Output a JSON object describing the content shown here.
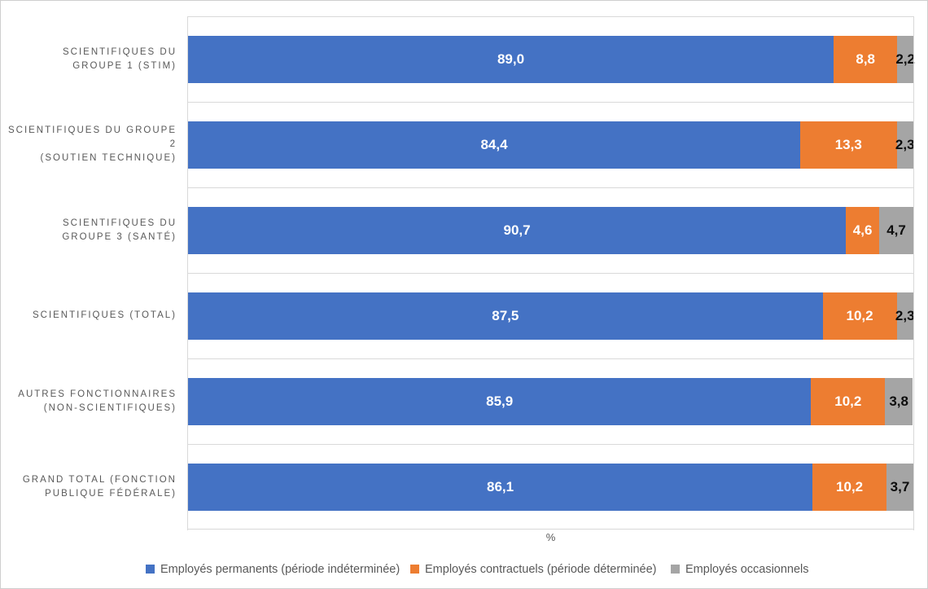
{
  "chart_data": {
    "type": "bar",
    "orientation": "horizontal",
    "stacked": true,
    "title": "",
    "xlabel": "%",
    "xlim": [
      0,
      100
    ],
    "grid": "horizontal band separators only",
    "legend_position": "bottom",
    "categories": [
      "SCIENTIFIQUES DU GROUPE 1 (STIM)",
      "SCIENTIFIQUES DU GROUPE 2 (SOUTIEN TECHNIQUE)",
      "SCIENTIFIQUES DU GROUPE 3 (SANTÉ)",
      "SCIENTIFIQUES (TOTAL)",
      "AUTRES FONCTIONNAIRES (NON-SCIENTIFIQUES)",
      "GRAND TOTAL (FONCTION PUBLIQUE FÉDÉRALE)"
    ],
    "series": [
      {
        "name": "Employés permanents (période indéterminée)",
        "color": "#4472C4",
        "values": [
          89.0,
          84.4,
          90.7,
          87.5,
          85.9,
          86.1
        ]
      },
      {
        "name": "Employés contractuels (période déterminée)",
        "color": "#ED7D31",
        "values": [
          8.8,
          13.3,
          4.6,
          10.2,
          10.2,
          10.2
        ]
      },
      {
        "name": "Employés occasionnels",
        "color": "#A5A5A5",
        "values": [
          2.2,
          2.3,
          4.7,
          2.3,
          3.8,
          3.7
        ]
      }
    ],
    "rows": [
      {
        "label": "SCIENTIFIQUES DU\nGROUPE 1 (STIM)",
        "values_display": [
          "89,0",
          "8,8",
          "2,2"
        ]
      },
      {
        "label": "SCIENTIFIQUES DU GROUPE 2\n(SOUTIEN TECHNIQUE)",
        "values_display": [
          "84,4",
          "13,3",
          "2,3"
        ]
      },
      {
        "label": "SCIENTIFIQUES DU\nGROUPE 3 (SANTÉ)",
        "values_display": [
          "90,7",
          "4,6",
          "4,7"
        ]
      },
      {
        "label": "SCIENTIFIQUES (TOTAL)",
        "values_display": [
          "87,5",
          "10,2",
          "2,3"
        ]
      },
      {
        "label": "AUTRES FONCTIONNAIRES\n(NON-SCIENTIFIQUES)",
        "values_display": [
          "85,9",
          "10,2",
          "3,8"
        ]
      },
      {
        "label": "GRAND TOTAL (FONCTION\nPUBLIQUE FÉDÉRALE)",
        "values_display": [
          "86,1",
          "10,2",
          "3,7"
        ]
      }
    ],
    "colors": {
      "permanent_blue": "#4472C4",
      "contract_orange": "#ED7D31",
      "casual_gray": "#A5A5A5",
      "gridline": "#D9D9D9",
      "axis_text": "#595959"
    }
  }
}
